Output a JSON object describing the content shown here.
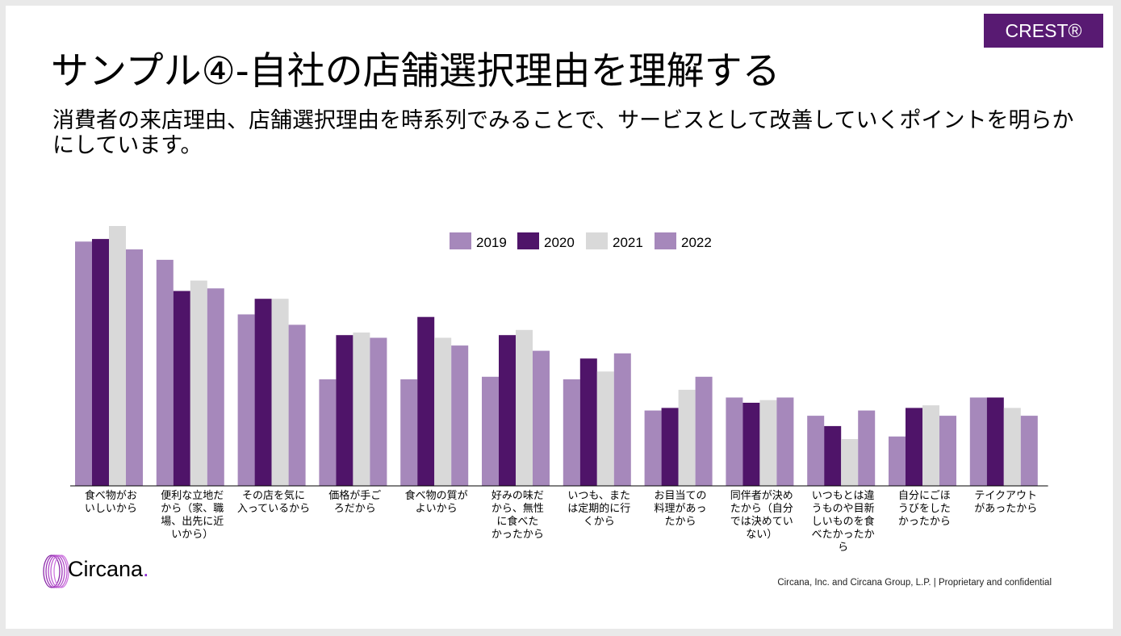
{
  "badge": "CREST®",
  "title": "サンプル④-自社の店舗選択理由を理解する",
  "subtitle": "消費者の来店理由、店舗選択理由を時系列でみることで、サービスとして改善していくポイントを明らかにしています。",
  "logo": {
    "text": "Circana",
    "dot": "."
  },
  "footer": {
    "company": "Circana, Inc. and Circana Group, L.P.",
    "separator": "|",
    "confidentiality": "Proprietary and confidential"
  },
  "colors": {
    "brand": "#581a72",
    "s2019": "#a688bb",
    "s2020": "#4f1469",
    "s2021": "#d9d9d9",
    "s2022": "#a688bb"
  },
  "chart_data": {
    "type": "bar",
    "legend_position": "top-center",
    "grid": false,
    "ylim": [
      0,
      100
    ],
    "categories": [
      [
        "食べ物がお",
        "いしいから"
      ],
      [
        "便利な立地だ",
        "から（家、職",
        "場、出先に近",
        "いから）"
      ],
      [
        "その店を気に",
        "入っているから"
      ],
      [
        "価格が手ご",
        "ろだから"
      ],
      [
        "食べ物の質が",
        "よいから"
      ],
      [
        "好みの味だ",
        "から、無性",
        "に食べた",
        "かったから"
      ],
      [
        "いつも、また",
        "は定期的に行",
        "くから"
      ],
      [
        "お目当ての",
        "料理があっ",
        "たから"
      ],
      [
        "同伴者が決め",
        "たから（自分",
        "では決めてい",
        "ない）"
      ],
      [
        "いつもとは違",
        "うものや目新",
        "しいものを食",
        "べたかったか",
        "ら"
      ],
      [
        "自分にごほ",
        "うびをした",
        "かったから"
      ],
      [
        "テイクアウト",
        "があったから"
      ]
    ],
    "series": [
      {
        "name": "2019",
        "color": "#a688bb",
        "values": [
          94,
          87,
          66,
          41,
          41,
          42,
          41,
          29,
          34,
          27,
          19,
          34
        ]
      },
      {
        "name": "2020",
        "color": "#4f1469",
        "values": [
          95,
          75,
          72,
          58,
          65,
          58,
          49,
          30,
          32,
          23,
          30,
          34
        ]
      },
      {
        "name": "2021",
        "color": "#d9d9d9",
        "values": [
          100,
          79,
          72,
          59,
          57,
          60,
          44,
          37,
          33,
          18,
          31,
          30
        ]
      },
      {
        "name": "2022",
        "color": "#a688bb",
        "values": [
          91,
          76,
          62,
          57,
          54,
          52,
          51,
          42,
          34,
          29,
          27,
          27
        ]
      }
    ]
  }
}
